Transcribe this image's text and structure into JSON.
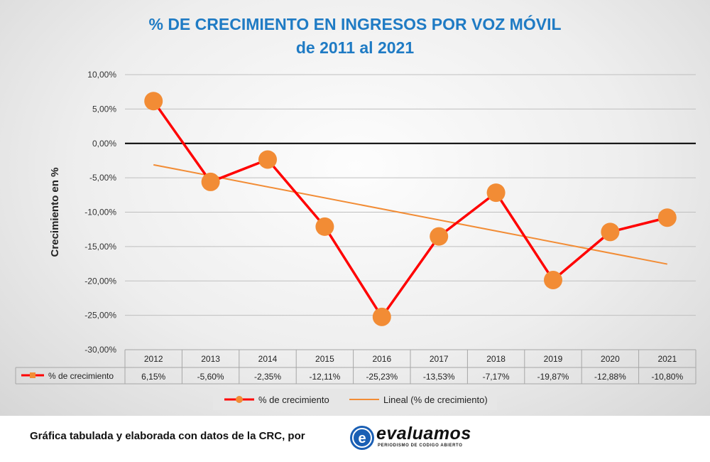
{
  "chart_data": {
    "type": "line",
    "title_line1": "% DE CRECIMIENTO EN INGRESOS POR VOZ MÓVIL",
    "title_line2": "de 2011 al 2021",
    "ylabel": "Crecimiento en %",
    "ylim": [
      -30,
      10
    ],
    "y_ticks": [
      "10,00%",
      "5,00%",
      "0,00%",
      "-5,00%",
      "-10,00%",
      "-15,00%",
      "-20,00%",
      "-25,00%",
      "-30,00%"
    ],
    "categories": [
      "2012",
      "2013",
      "2014",
      "2015",
      "2016",
      "2017",
      "2018",
      "2019",
      "2020",
      "2021"
    ],
    "series": [
      {
        "name": "% de crecimiento",
        "values": [
          6.15,
          -5.6,
          -2.35,
          -12.11,
          -25.23,
          -13.53,
          -7.17,
          -19.87,
          -12.88,
          -10.8
        ],
        "value_labels": [
          "6,15%",
          "-5,60%",
          "-2,35%",
          "-12,11%",
          "-25,23%",
          "-13,53%",
          "-7,17%",
          "-19,87%",
          "-12,88%",
          "-10,80%"
        ],
        "line_color": "#ff0000",
        "marker_color": "#f28c35"
      }
    ],
    "trendline": {
      "name": "Lineal (% de crecimiento)",
      "start": -3.11,
      "end": -17.55,
      "color": "#f28c35"
    },
    "grid": true,
    "legend_position": "bottom",
    "data_table": true
  },
  "footer": {
    "source_text": "Gráfica tabulada y elaborada con datos de la CRC, por",
    "logo_name": "evaluamos",
    "logo_tagline": "PERIODISMO DE CODIGO ABIERTO",
    "logo_letter": "e"
  }
}
